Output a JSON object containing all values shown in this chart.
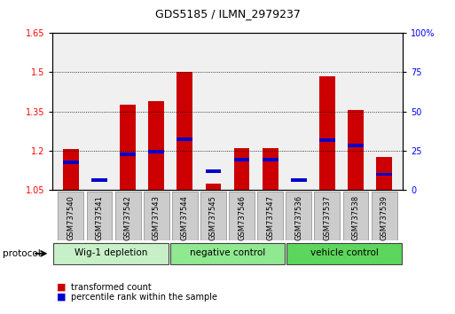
{
  "title": "GDS5185 / ILMN_2979237",
  "samples": [
    "GSM737540",
    "GSM737541",
    "GSM737542",
    "GSM737543",
    "GSM737544",
    "GSM737545",
    "GSM737546",
    "GSM737547",
    "GSM737536",
    "GSM737537",
    "GSM737538",
    "GSM737539"
  ],
  "red_values": [
    1.205,
    1.052,
    1.375,
    1.39,
    1.502,
    1.075,
    1.21,
    1.21,
    1.052,
    1.485,
    1.355,
    1.175
  ],
  "blue_pct": [
    17.5,
    6.5,
    22.5,
    24.5,
    32.5,
    12.0,
    19.5,
    19.5,
    6.5,
    31.5,
    28.5,
    10.0
  ],
  "ylim_left": [
    1.05,
    1.65
  ],
  "ylim_right": [
    0,
    100
  ],
  "yticks_left": [
    1.05,
    1.2,
    1.35,
    1.5,
    1.65
  ],
  "yticks_right": [
    0,
    25,
    50,
    75,
    100
  ],
  "groups": [
    {
      "label": "Wig-1 depletion",
      "start": 0,
      "end": 4
    },
    {
      "label": "negative control",
      "start": 4,
      "end": 8
    },
    {
      "label": "vehicle control",
      "start": 8,
      "end": 12
    }
  ],
  "group_colors": [
    "#c8f0c8",
    "#90e890",
    "#5cd65c"
  ],
  "protocol_label": "protocol",
  "legend_red": "transformed count",
  "legend_blue": "percentile rank within the sample",
  "bar_color_red": "#cc0000",
  "bar_color_blue": "#0000cc",
  "bar_width": 0.55,
  "plot_bg": "#f0f0f0"
}
